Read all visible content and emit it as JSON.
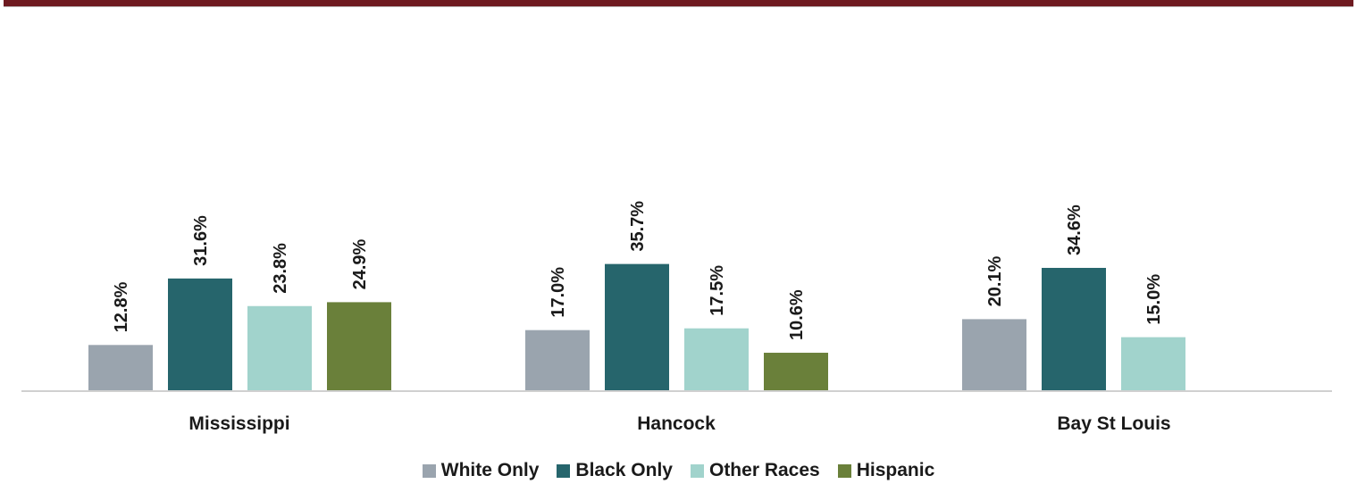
{
  "chart_data": {
    "type": "bar",
    "categories": [
      "Mississippi",
      "Hancock",
      "Bay St Louis"
    ],
    "series": [
      {
        "name": "White Only",
        "color": "#9aa4ae",
        "values": [
          12.8,
          17.0,
          20.1
        ],
        "labels": [
          "12.8%",
          "17.0%",
          "20.1%"
        ]
      },
      {
        "name": "Black Only",
        "color": "#26656c",
        "values": [
          31.6,
          35.7,
          34.6
        ],
        "labels": [
          "31.6%",
          "35.7%",
          "34.6%"
        ]
      },
      {
        "name": "Other Races",
        "color": "#a1d3cc",
        "values": [
          23.8,
          17.5,
          15.0
        ],
        "labels": [
          "23.8%",
          "17.5%",
          "15.0%"
        ]
      },
      {
        "name": "Hispanic",
        "color": "#6a803a",
        "values": [
          24.9,
          10.6,
          null
        ],
        "labels": [
          "24.9%",
          "10.6%",
          null
        ]
      }
    ],
    "title": "",
    "xlabel": "",
    "ylabel": "",
    "ylim": [
      0,
      100
    ],
    "grid": false,
    "legend_position": "bottom",
    "value_unit": "%"
  }
}
